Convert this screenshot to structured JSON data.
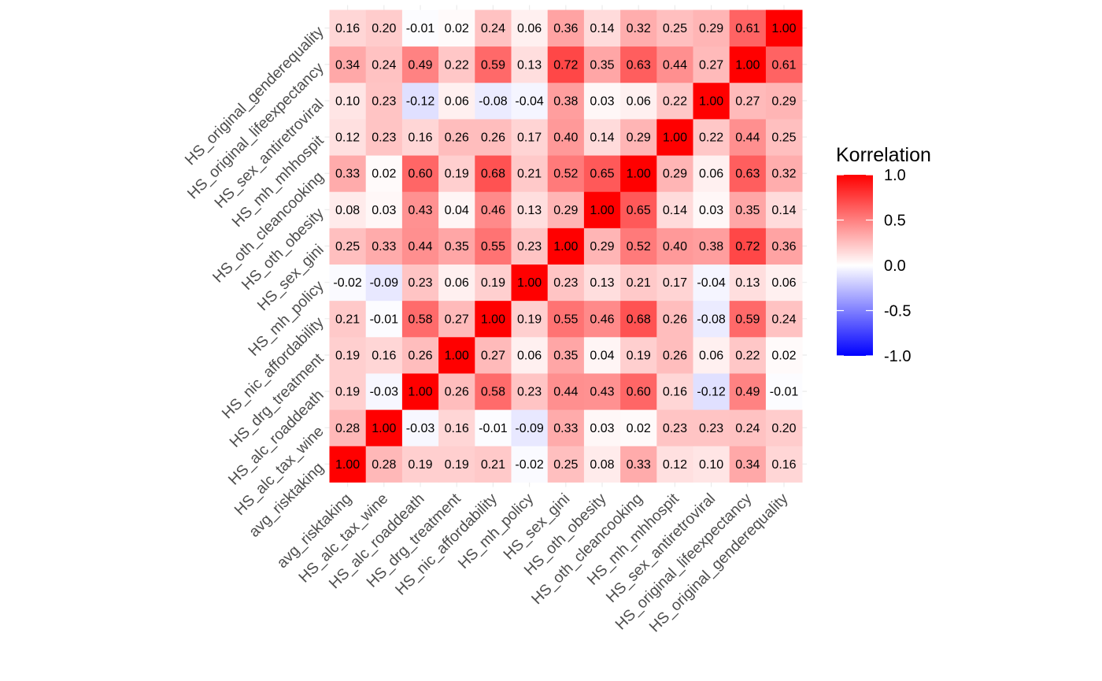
{
  "chart_data": {
    "type": "heatmap",
    "variables": [
      "avg_risktaking",
      "HS_alc_tax_wine",
      "HS_alc_roaddeath",
      "HS_drg_treatment",
      "HS_nic_affordability",
      "HS_mh_policy",
      "HS_sex_gini",
      "HS_oth_obesity",
      "HS_oth_cleancooking",
      "HS_mh_mhhospit",
      "HS_sex_antiretroviral",
      "HS_original_lifeexpectancy",
      "HS_original_genderequality"
    ],
    "matrix": [
      [
        1.0,
        0.28,
        0.19,
        0.19,
        0.21,
        -0.02,
        0.25,
        0.08,
        0.33,
        0.12,
        0.1,
        0.34,
        0.16
      ],
      [
        0.28,
        1.0,
        -0.03,
        0.16,
        -0.01,
        -0.09,
        0.33,
        0.03,
        0.02,
        0.23,
        0.23,
        0.24,
        0.2
      ],
      [
        0.19,
        -0.03,
        1.0,
        0.26,
        0.58,
        0.23,
        0.44,
        0.43,
        0.6,
        0.16,
        -0.12,
        0.49,
        -0.01
      ],
      [
        0.19,
        0.16,
        0.26,
        1.0,
        0.27,
        0.06,
        0.35,
        0.04,
        0.19,
        0.26,
        0.06,
        0.22,
        0.02
      ],
      [
        0.21,
        -0.01,
        0.58,
        0.27,
        1.0,
        0.19,
        0.55,
        0.46,
        0.68,
        0.26,
        -0.08,
        0.59,
        0.24
      ],
      [
        -0.02,
        -0.09,
        0.23,
        0.06,
        0.19,
        1.0,
        0.23,
        0.13,
        0.21,
        0.17,
        -0.04,
        0.13,
        0.06
      ],
      [
        0.25,
        0.33,
        0.44,
        0.35,
        0.55,
        0.23,
        1.0,
        0.29,
        0.52,
        0.4,
        0.38,
        0.72,
        0.36
      ],
      [
        0.08,
        0.03,
        0.43,
        0.04,
        0.46,
        0.13,
        0.29,
        1.0,
        0.65,
        0.14,
        0.03,
        0.35,
        0.14
      ],
      [
        0.33,
        0.02,
        0.6,
        0.19,
        0.68,
        0.21,
        0.52,
        0.65,
        1.0,
        0.29,
        0.06,
        0.63,
        0.32
      ],
      [
        0.12,
        0.23,
        0.16,
        0.26,
        0.26,
        0.17,
        0.4,
        0.14,
        0.29,
        1.0,
        0.22,
        0.44,
        0.25
      ],
      [
        0.1,
        0.23,
        -0.12,
        0.06,
        -0.08,
        -0.04,
        0.38,
        0.03,
        0.06,
        0.22,
        1.0,
        0.27,
        0.29
      ],
      [
        0.34,
        0.24,
        0.49,
        0.22,
        0.59,
        0.13,
        0.72,
        0.35,
        0.63,
        0.44,
        0.27,
        1.0,
        0.61
      ],
      [
        0.16,
        0.2,
        -0.01,
        0.02,
        0.24,
        0.06,
        0.36,
        0.14,
        0.32,
        0.25,
        0.29,
        0.61,
        1.0
      ]
    ],
    "value_range": [
      -1.0,
      1.0
    ],
    "legend": {
      "title": "Korrelation",
      "ticks": [
        "1.0",
        "0.5",
        "0.0",
        "-0.5",
        "-1.0"
      ],
      "tick_values": [
        1.0,
        0.5,
        0.0,
        -0.5,
        -1.0
      ],
      "placement": "right"
    },
    "colors": {
      "low": "#0000ff",
      "mid": "#ffffff",
      "high": "#ff0000"
    },
    "xlabel": "",
    "ylabel": "",
    "title": "",
    "grid": true
  }
}
